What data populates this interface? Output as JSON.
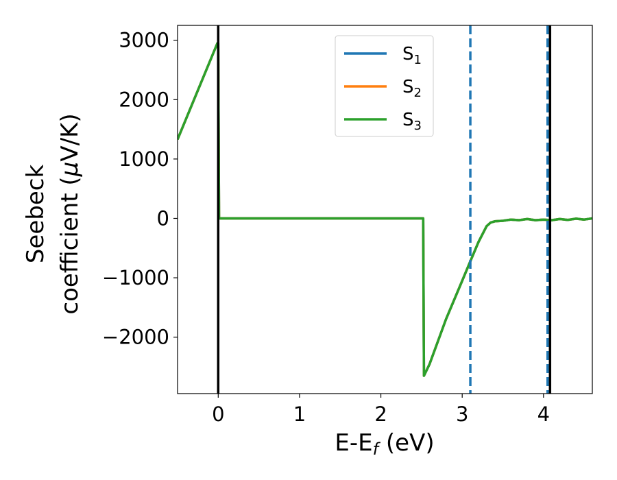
{
  "chart_data": {
    "type": "line",
    "title": "",
    "xlabel": {
      "main": "E-E",
      "sub": "f",
      "unit": " (eV)"
    },
    "ylabel": {
      "line1": "Seebeck",
      "line2_prefix": "coefficient  (",
      "mu": "μ",
      "line2_suffix": "V/K)"
    },
    "xlim": [
      -0.5,
      4.6
    ],
    "ylim": [
      -2950,
      3250
    ],
    "xticks": [
      0,
      1,
      2,
      3,
      4
    ],
    "xtick_labels": [
      "0",
      "1",
      "2",
      "3",
      "4"
    ],
    "yticks": [
      -2000,
      -1000,
      0,
      1000,
      2000,
      3000
    ],
    "ytick_labels": [
      "−2000",
      "−1000",
      "0",
      "1000",
      "2000",
      "3000"
    ],
    "grid": false,
    "legend_position": "top-center",
    "series": [
      {
        "name": "S",
        "sub": "1",
        "color": "#1f77b4",
        "x": [
          -0.5,
          -0.01,
          0.0,
          0.01,
          2.52,
          2.53,
          2.6,
          2.8,
          3.0,
          3.1,
          3.2,
          3.3,
          3.35,
          3.4,
          3.5,
          3.6,
          3.7,
          3.8,
          3.9,
          4.0,
          4.1,
          4.2,
          4.3,
          4.4,
          4.5,
          4.6
        ],
        "y": [
          1330,
          2950,
          2950,
          0,
          0,
          -2650,
          -2450,
          -1700,
          -1050,
          -720,
          -400,
          -130,
          -70,
          -50,
          -40,
          -20,
          -30,
          -10,
          -30,
          -20,
          -30,
          -10,
          -25,
          -5,
          -20,
          0
        ]
      },
      {
        "name": "S",
        "sub": "2",
        "color": "#ff7f0e",
        "x": [
          -0.5,
          -0.01,
          0.0,
          0.01,
          2.52,
          2.53,
          2.6,
          2.8,
          3.0,
          3.1,
          3.2,
          3.3,
          3.35,
          3.4,
          3.5,
          3.6,
          3.7,
          3.8,
          3.9,
          4.0,
          4.1,
          4.2,
          4.3,
          4.4,
          4.5,
          4.6
        ],
        "y": [
          1330,
          2950,
          2950,
          0,
          0,
          -2650,
          -2450,
          -1700,
          -1050,
          -720,
          -400,
          -130,
          -70,
          -50,
          -40,
          -20,
          -30,
          -10,
          -30,
          -20,
          -30,
          -10,
          -25,
          -5,
          -20,
          0
        ]
      },
      {
        "name": "S",
        "sub": "3",
        "color": "#2ca02c",
        "x": [
          -0.5,
          -0.01,
          0.0,
          0.01,
          2.52,
          2.53,
          2.6,
          2.8,
          3.0,
          3.1,
          3.2,
          3.3,
          3.35,
          3.4,
          3.5,
          3.6,
          3.7,
          3.8,
          3.9,
          4.0,
          4.1,
          4.2,
          4.3,
          4.4,
          4.5,
          4.6
        ],
        "y": [
          1330,
          2950,
          2950,
          0,
          0,
          -2650,
          -2450,
          -1700,
          -1050,
          -720,
          -400,
          -130,
          -70,
          -50,
          -40,
          -20,
          -30,
          -10,
          -30,
          -20,
          -30,
          -10,
          -25,
          -5,
          -20,
          0
        ]
      }
    ],
    "vertical_lines": [
      {
        "x": 0.0,
        "style": "solid",
        "color": "#000000"
      },
      {
        "x": 4.08,
        "style": "solid",
        "color": "#000000"
      },
      {
        "x": 3.1,
        "style": "dashed",
        "color": "#1f77b4"
      },
      {
        "x": 4.05,
        "style": "dashed",
        "color": "#1f77b4"
      }
    ]
  }
}
